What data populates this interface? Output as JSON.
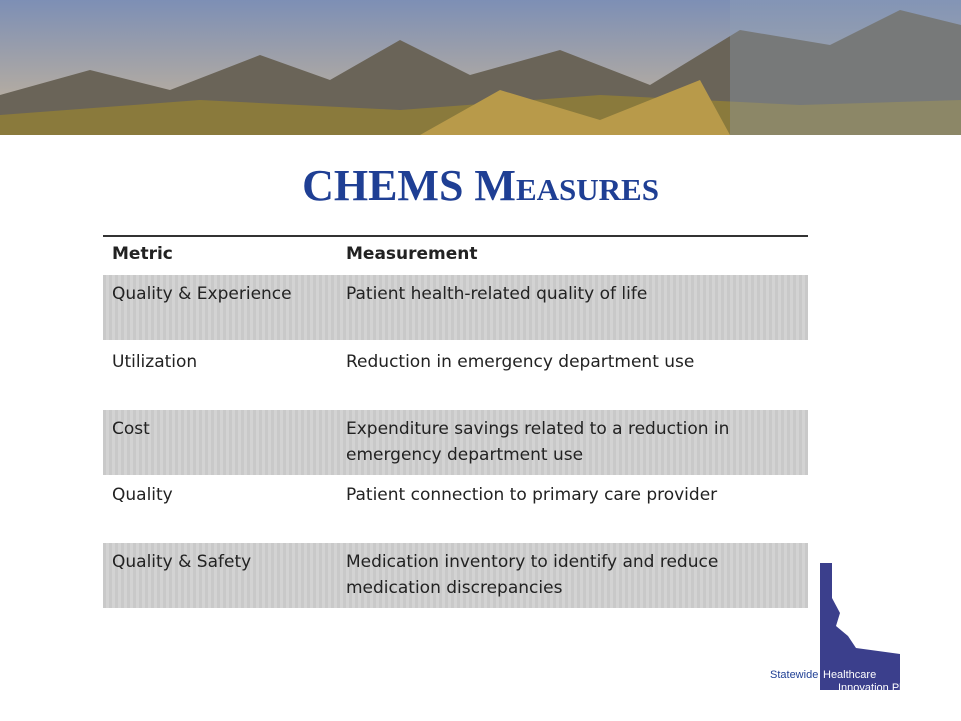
{
  "slide": {
    "title": "CHEMS Measures",
    "table": {
      "header": [
        "Metric",
        "Measurement"
      ],
      "rows": [
        [
          "Quality & Experience",
          "Patient health-related quality of life"
        ],
        [
          "Utilization",
          "Reduction in emergency department use"
        ],
        [
          "Cost",
          "Expenditure savings related to a reduction in emergency department use"
        ],
        [
          "Quality",
          "Patient connection to primary care provider"
        ],
        [
          "Quality & Safety",
          "Medication inventory to identify and reduce medication discrepancies"
        ]
      ]
    },
    "logo": {
      "line1": "Statewide",
      "line2": "Healthcare",
      "line3": "Innovation Plan"
    }
  }
}
